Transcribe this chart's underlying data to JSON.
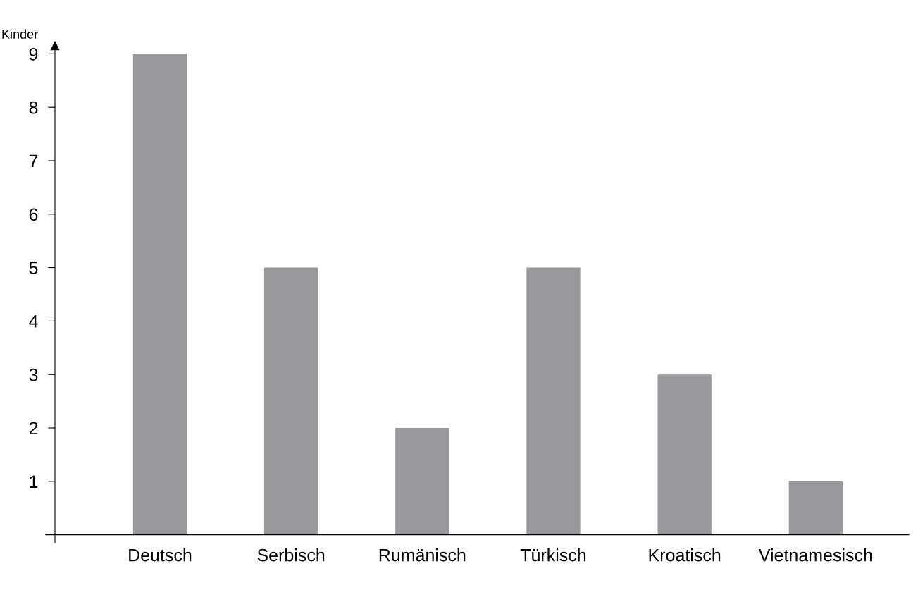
{
  "chart_data": {
    "type": "bar",
    "ylabel": "Kinder",
    "categories": [
      "Deutsch",
      "Serbisch",
      "Rumänisch",
      "Türkisch",
      "Kroatisch",
      "Vietnamesisch"
    ],
    "values": [
      9,
      5,
      2,
      5,
      3,
      1
    ],
    "color": "#97999c",
    "ylim": [
      -0.15,
      9.15
    ],
    "yticks": [
      1,
      2,
      3,
      4,
      5,
      6,
      7,
      8,
      9
    ],
    "grid": false,
    "legend": false
  }
}
